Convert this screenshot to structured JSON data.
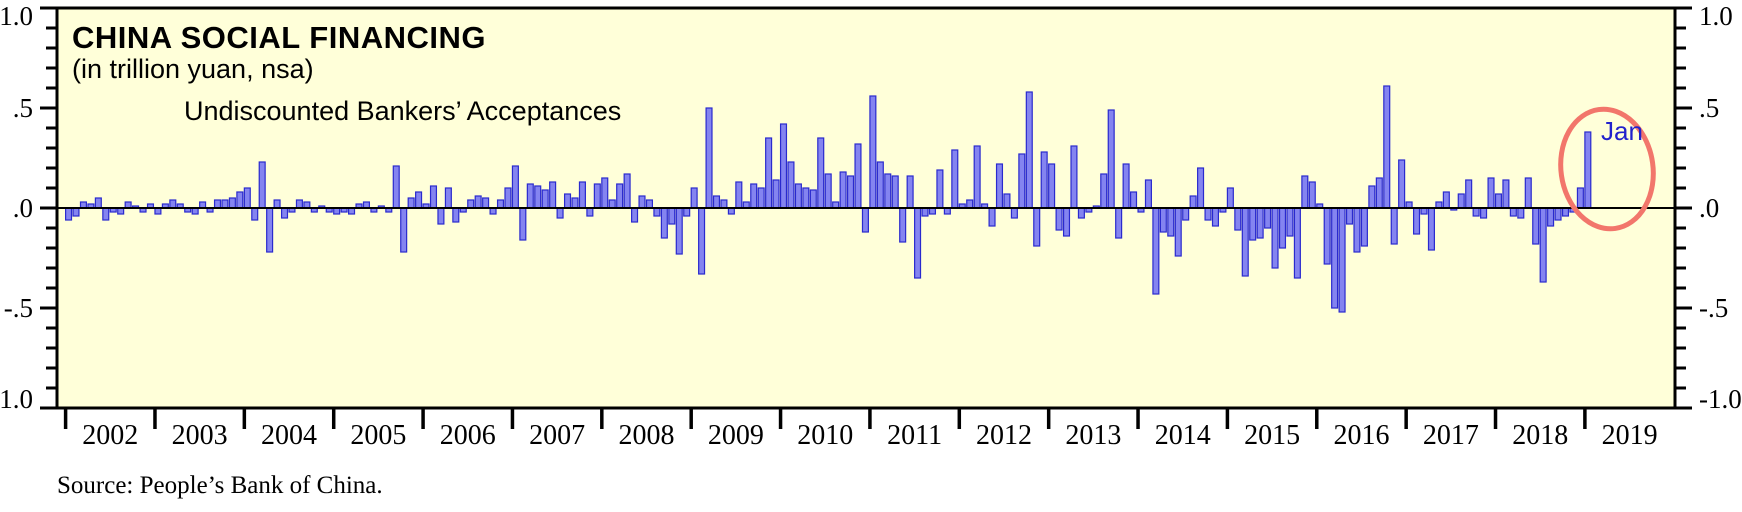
{
  "title": "CHINA SOCIAL FINANCING",
  "subtitle": "(in trillion yuan, nsa)",
  "series_label": "Undiscounted Bankers’ Acceptances",
  "annotation": {
    "label": "Jan",
    "color": "#2222cc"
  },
  "source": "Source: People’s Bank of China.",
  "colors": {
    "plot_background": "#ffffd9",
    "bar_fill": "#8484f0",
    "bar_stroke": "#2a2ace",
    "axis": "#000000",
    "highlight_ellipse": "#f2766b",
    "annotation_text": "#2222cc"
  },
  "chart_data": {
    "type": "bar",
    "title": "CHINA SOCIAL FINANCING (in trillion yuan, nsa) — Undiscounted Bankers’ Acceptances",
    "xlabel": "",
    "ylabel": "trillion yuan",
    "ylim": [
      -1.0,
      1.0
    ],
    "y_ticks": [
      1.0,
      0.5,
      0.0,
      -0.5,
      -1.0
    ],
    "y_tick_labels": [
      "1.0",
      ".5",
      ".0",
      "-.5",
      "-1.0"
    ],
    "y_minor_step": 0.1,
    "grid": false,
    "legend_position": "none",
    "x_start": "2002-01",
    "x_end": "2019-01",
    "x_year_labels": [
      "2002",
      "2003",
      "2004",
      "2005",
      "2006",
      "2007",
      "2008",
      "2009",
      "2010",
      "2011",
      "2012",
      "2013",
      "2014",
      "2015",
      "2016",
      "2017",
      "2018",
      "2019"
    ],
    "values": [
      -0.06,
      -0.04,
      0.03,
      0.02,
      0.05,
      -0.06,
      -0.02,
      -0.03,
      0.03,
      0.01,
      -0.02,
      0.02,
      -0.03,
      0.02,
      0.04,
      0.02,
      -0.02,
      -0.03,
      0.03,
      -0.02,
      0.04,
      0.04,
      0.05,
      0.08,
      0.1,
      -0.06,
      0.23,
      -0.22,
      0.04,
      -0.05,
      -0.02,
      0.04,
      0.03,
      -0.02,
      0.01,
      -0.02,
      -0.03,
      -0.02,
      -0.03,
      0.02,
      0.03,
      -0.02,
      0.01,
      -0.02,
      0.21,
      -0.22,
      0.05,
      0.08,
      0.02,
      0.11,
      -0.08,
      0.1,
      -0.07,
      -0.02,
      0.04,
      0.06,
      0.05,
      -0.03,
      0.04,
      0.1,
      0.21,
      -0.16,
      0.12,
      0.11,
      0.09,
      0.13,
      -0.05,
      0.07,
      0.05,
      0.13,
      -0.04,
      0.12,
      0.15,
      0.04,
      0.12,
      0.17,
      -0.07,
      0.06,
      0.04,
      -0.04,
      -0.15,
      -0.08,
      -0.23,
      -0.04,
      0.1,
      -0.33,
      0.5,
      0.06,
      0.04,
      -0.03,
      0.13,
      0.03,
      0.12,
      0.1,
      0.35,
      0.14,
      0.42,
      0.23,
      0.12,
      0.1,
      0.09,
      0.35,
      0.17,
      0.03,
      0.18,
      0.16,
      0.32,
      -0.12,
      0.56,
      0.23,
      0.17,
      0.16,
      -0.17,
      0.16,
      -0.35,
      -0.04,
      -0.03,
      0.19,
      -0.03,
      0.29,
      0.02,
      0.04,
      0.31,
      0.02,
      -0.09,
      0.22,
      0.07,
      -0.05,
      0.27,
      0.58,
      -0.19,
      0.28,
      0.22,
      -0.11,
      -0.14,
      0.31,
      -0.05,
      -0.02,
      0.01,
      0.17,
      0.49,
      -0.15,
      0.22,
      0.08,
      -0.02,
      0.14,
      -0.43,
      -0.12,
      -0.14,
      -0.24,
      -0.06,
      0.06,
      0.2,
      -0.06,
      -0.09,
      -0.02,
      0.1,
      -0.11,
      -0.34,
      -0.16,
      -0.15,
      -0.1,
      -0.3,
      -0.2,
      -0.14,
      -0.35,
      0.16,
      0.13,
      0.02,
      -0.28,
      -0.5,
      -0.52,
      -0.08,
      -0.22,
      -0.19,
      0.11,
      0.15,
      0.61,
      -0.18,
      0.24,
      0.03,
      -0.13,
      -0.03,
      -0.21,
      0.03,
      0.08,
      -0.01,
      0.07,
      0.14,
      -0.04,
      -0.05,
      0.15,
      0.07,
      0.14,
      -0.04,
      -0.05,
      0.15,
      -0.18,
      -0.37,
      -0.09,
      -0.06,
      -0.04,
      -0.02,
      0.1,
      0.38
    ],
    "highlight": {
      "month": "2019-01",
      "value": 0.38,
      "annotation": "Jan"
    }
  }
}
